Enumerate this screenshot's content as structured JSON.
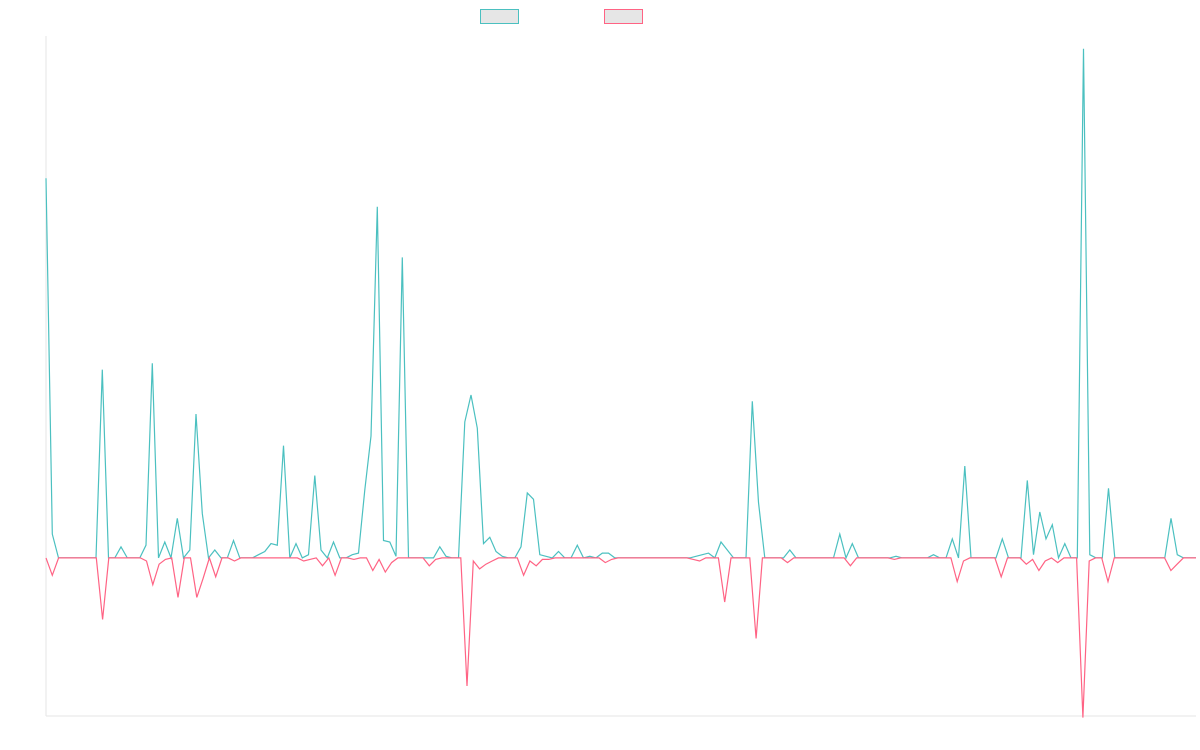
{
  "chart_data": {
    "type": "line",
    "title": "",
    "xlabel": "",
    "ylabel": "",
    "grid": false,
    "legend_placement": "top-center",
    "ylim": [
      -100,
      330
    ],
    "series": [
      {
        "color": "#4bc0c0",
        "values": [
          240,
          15,
          0,
          0,
          0,
          0,
          0,
          0,
          0,
          119,
          0,
          0,
          7,
          0,
          0,
          0,
          8,
          123,
          0,
          10,
          0,
          25,
          0,
          5,
          91,
          28,
          0,
          5,
          0,
          0,
          11,
          0,
          0,
          0,
          2,
          4,
          9,
          8,
          71,
          0,
          9,
          0,
          2,
          52,
          5,
          0,
          10,
          0,
          0,
          2,
          3,
          43,
          77,
          222,
          11,
          10,
          1,
          190,
          0,
          0,
          0,
          0,
          0,
          7,
          1,
          0,
          0,
          86,
          103,
          82,
          9,
          13,
          4,
          1,
          0,
          0,
          7,
          41,
          37,
          2,
          1,
          0,
          4,
          0,
          0,
          8,
          0,
          1,
          0,
          3,
          3,
          0,
          0,
          0,
          0,
          0,
          0,
          0,
          0,
          0,
          0,
          0,
          0,
          0,
          1,
          2,
          3,
          0,
          10,
          5,
          0,
          0,
          0,
          99,
          35,
          0,
          0,
          0,
          0,
          5,
          0,
          0,
          0,
          0,
          0,
          0,
          0,
          15,
          0,
          9,
          0,
          0,
          0,
          0,
          0,
          0,
          1,
          0,
          0,
          0,
          0,
          0,
          2,
          0,
          0,
          12,
          0,
          58,
          0,
          0,
          0,
          0,
          0,
          12,
          0,
          0,
          0,
          49,
          2,
          29,
          12,
          21,
          0,
          9,
          0,
          0,
          322,
          2,
          0,
          0,
          44,
          0,
          0,
          0,
          0,
          0,
          0,
          0,
          0,
          0,
          25,
          2,
          0,
          0,
          0
        ]
      },
      {
        "color": "#ff6384",
        "values": [
          0,
          -11,
          0,
          0,
          0,
          0,
          0,
          0,
          0,
          -39,
          0,
          0,
          0,
          0,
          0,
          0,
          -2,
          -17,
          -4,
          -1,
          0,
          -25,
          0,
          0,
          -25,
          -13,
          0,
          -12,
          0,
          0,
          -2,
          0,
          0,
          0,
          0,
          0,
          0,
          0,
          0,
          0,
          0,
          -2,
          -1,
          0,
          -5,
          0,
          -11,
          0,
          0,
          -1,
          0,
          0,
          -8,
          -1,
          -9,
          -3,
          0,
          0,
          0,
          0,
          0,
          -5,
          -1,
          0,
          0,
          0,
          0,
          -81,
          -2,
          -7,
          -4,
          -2,
          0,
          0,
          0,
          0,
          -11,
          -2,
          -5,
          -1,
          -1,
          0,
          0,
          0,
          0,
          0,
          0,
          0,
          0,
          -3,
          -1,
          0,
          0,
          0,
          0,
          0,
          0,
          0,
          0,
          0,
          0,
          0,
          0,
          -1,
          -2,
          0,
          0,
          0,
          -28,
          0,
          0,
          0,
          0,
          -51,
          0,
          0,
          0,
          0,
          -3,
          0,
          0,
          0,
          0,
          0,
          0,
          0,
          0,
          0,
          -5,
          0,
          0,
          0,
          0,
          0,
          0,
          -1,
          0,
          0,
          0,
          0,
          0,
          0,
          0,
          0,
          0,
          -15,
          -2,
          0,
          0,
          0,
          0,
          0,
          -12,
          0,
          0,
          0,
          -4,
          -1,
          -8,
          -2,
          0,
          -3,
          0,
          0,
          0,
          -101,
          -2,
          0,
          0,
          -15,
          0,
          0,
          0,
          0,
          0,
          0,
          0,
          0,
          0,
          -8,
          -4,
          0,
          0,
          0
        ]
      }
    ]
  }
}
